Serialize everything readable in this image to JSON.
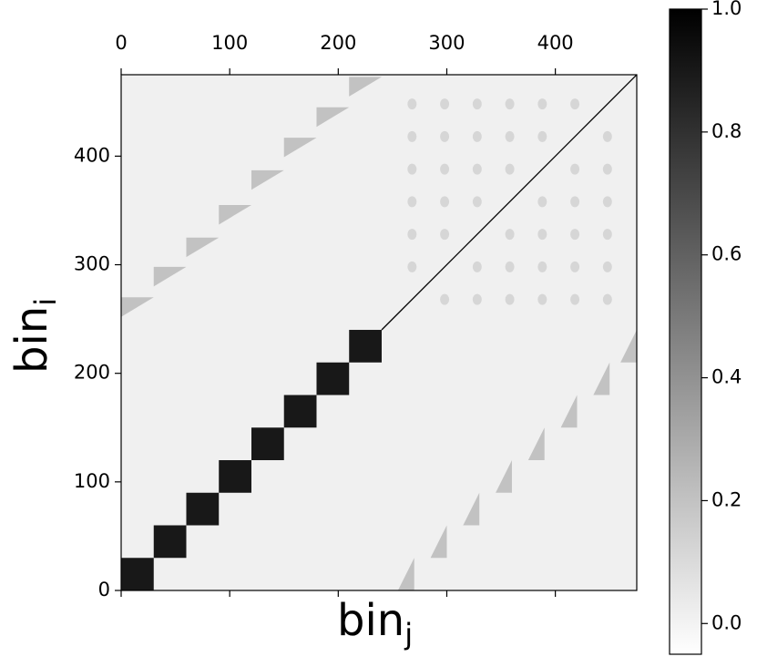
{
  "chart_data": {
    "type": "heatmap",
    "xlabel": "bin",
    "xlabel_sub": "j",
    "ylabel": "bin",
    "ylabel_sub": "i",
    "xlim": [
      0,
      475
    ],
    "ylim": [
      0,
      475
    ],
    "xticks": [
      0,
      100,
      200,
      300,
      400
    ],
    "yticks": [
      0,
      100,
      200,
      300,
      400
    ],
    "colormap": "gray_r",
    "clim": [
      -0.05,
      1.0
    ],
    "background_value": 0.01,
    "colorbar_ticks": [
      {
        "value": 0,
        "label": "0.0"
      },
      {
        "value": 0.2,
        "label": "0.2"
      },
      {
        "value": 0.4,
        "label": "0.4"
      },
      {
        "value": 0.6,
        "label": "0.6"
      },
      {
        "value": 0.8,
        "label": "0.8"
      },
      {
        "value": 1.0,
        "label": "1.0"
      }
    ],
    "blocks": {
      "starts": [
        0,
        30,
        60,
        90,
        120,
        150,
        180,
        210
      ],
      "size": 30,
      "value": 0.9
    },
    "diagonal": {
      "from": 240,
      "to": 475,
      "value": 1.0
    },
    "wedge_size": 30,
    "wedge_value": 0.2,
    "upper_wedges": [
      {
        "x": 0,
        "y": 270
      },
      {
        "x": 30,
        "y": 298
      },
      {
        "x": 60,
        "y": 325
      },
      {
        "x": 90,
        "y": 355
      },
      {
        "x": 120,
        "y": 387
      },
      {
        "x": 150,
        "y": 417
      },
      {
        "x": 180,
        "y": 445
      },
      {
        "x": 210,
        "y": 473
      }
    ],
    "lower_wedges": [
      {
        "x": 270,
        "y": 0
      },
      {
        "x": 300,
        "y": 30
      },
      {
        "x": 330,
        "y": 60
      },
      {
        "x": 360,
        "y": 90
      },
      {
        "x": 390,
        "y": 120
      },
      {
        "x": 420,
        "y": 150
      },
      {
        "x": 450,
        "y": 180
      },
      {
        "x": 475,
        "y": 210
      }
    ],
    "spot_positions": [
      268,
      298,
      328,
      358,
      388,
      418,
      448
    ],
    "spot_value": 0.12
  }
}
